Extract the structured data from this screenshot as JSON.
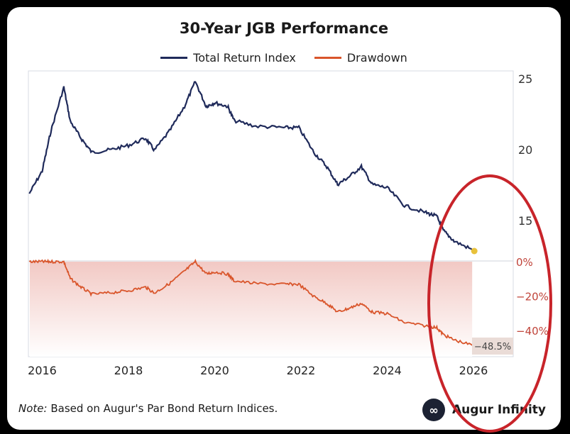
{
  "chart_data": {
    "type": "line",
    "title": "30-Year JGB Performance",
    "legend": [
      "Total Return Index",
      "Drawdown"
    ],
    "legend_placement": "top",
    "colors": {
      "total_return": "#1f2a5a",
      "drawdown": "#d9552b",
      "annotation": "#c8242a",
      "end_marker": "#e8c13a"
    },
    "x_ticks": [
      "2016",
      "2018",
      "2020",
      "2022",
      "2024",
      "2026"
    ],
    "xlim": [
      2015.7,
      2026.5
    ],
    "top_axis": {
      "ylim": [
        12,
        25.5
      ],
      "ticks": [
        "25",
        "20",
        "15"
      ],
      "position": "right"
    },
    "bottom_axis": {
      "ylim": [
        -55,
        0
      ],
      "ticks": [
        "0%",
        "-20%",
        "-40%"
      ],
      "position": "right"
    },
    "x": [
      2015.7,
      2016.0,
      2016.2,
      2016.5,
      2016.65,
      2016.9,
      2017.15,
      2017.6,
      2018.0,
      2018.4,
      2018.6,
      2018.95,
      2019.3,
      2019.55,
      2019.8,
      2020.0,
      2020.3,
      2020.45,
      2020.95,
      2021.6,
      2021.95,
      2022.3,
      2022.6,
      2022.85,
      2023.1,
      2023.4,
      2023.65,
      2024.0,
      2024.4,
      2024.9,
      2025.15,
      2025.3,
      2025.55,
      2025.97
    ],
    "series": [
      {
        "name": "Total Return Index",
        "values": [
          16.9,
          18.5,
          21.3,
          24.4,
          22.0,
          20.8,
          19.8,
          20.0,
          20.3,
          20.8,
          19.95,
          21.3,
          23.05,
          24.8,
          23.05,
          23.3,
          23.05,
          22.05,
          21.65,
          21.55,
          21.55,
          19.8,
          18.8,
          17.55,
          18.05,
          18.8,
          17.55,
          17.3,
          16.05,
          15.55,
          15.3,
          14.3,
          13.55,
          12.95
        ]
      },
      {
        "name": "Drawdown",
        "values": [
          0,
          0,
          0,
          0,
          -9.8,
          -14.8,
          -18.9,
          -18.0,
          -16.8,
          -14.8,
          -18.2,
          -12.7,
          -5.5,
          0,
          -7.1,
          -6.0,
          -7.1,
          -11.1,
          -12.7,
          -13.1,
          -13.1,
          -20.2,
          -24.2,
          -29.2,
          -27.2,
          -24.2,
          -29.2,
          -30.2,
          -35.3,
          -37.3,
          -38.3,
          -42.3,
          -45.4,
          -48.5
        ]
      }
    ],
    "end_label": "−48.5%",
    "grid": false
  },
  "footer": {
    "note_label": "Note:",
    "note_text": " Based on Augur's Par Bond Return Indices.",
    "brand": "Augur Infinity"
  }
}
